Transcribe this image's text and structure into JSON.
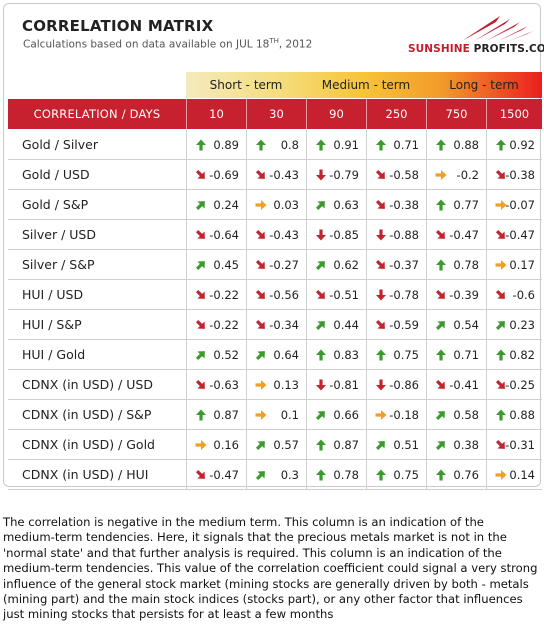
{
  "header": {
    "title": "CORRELATION MATRIX",
    "subtitle_prefix": "Calculations based on data available on  JUL 18",
    "subtitle_sup": "TH",
    "subtitle_suffix": ", 2012"
  },
  "logo": {
    "part1": "SUNSHINE",
    "part2": " PROFITS.COM",
    "colors": {
      "sun": "#c01e2d",
      "text": "#222222",
      "rays": "#c01e2d"
    }
  },
  "terms": [
    "Short - term",
    "Medium - term",
    "Long - term"
  ],
  "table": {
    "corner_label": "CORRELATION / DAYS",
    "columns": [
      "10",
      "30",
      "90",
      "250",
      "750",
      "1500"
    ],
    "rows": [
      {
        "label": "Gold / Silver",
        "cells": [
          {
            "value": "0.89",
            "dir": "up"
          },
          {
            "value": "0.8",
            "dir": "up"
          },
          {
            "value": "0.91",
            "dir": "up"
          },
          {
            "value": "0.71",
            "dir": "up"
          },
          {
            "value": "0.88",
            "dir": "up"
          },
          {
            "value": "0.92",
            "dir": "up"
          }
        ]
      },
      {
        "label": "Gold / USD",
        "cells": [
          {
            "value": "-0.69",
            "dir": "down-diag"
          },
          {
            "value": "-0.43",
            "dir": "down-diag"
          },
          {
            "value": "-0.79",
            "dir": "down"
          },
          {
            "value": "-0.58",
            "dir": "down-diag"
          },
          {
            "value": "-0.2",
            "dir": "flat"
          },
          {
            "value": "-0.38",
            "dir": "down-diag"
          }
        ]
      },
      {
        "label": "Gold / S&P",
        "cells": [
          {
            "value": "0.24",
            "dir": "up-diag"
          },
          {
            "value": "0.03",
            "dir": "flat"
          },
          {
            "value": "0.63",
            "dir": "up-diag"
          },
          {
            "value": "-0.38",
            "dir": "down-diag"
          },
          {
            "value": "0.77",
            "dir": "up"
          },
          {
            "value": "-0.07",
            "dir": "flat"
          }
        ]
      },
      {
        "label": "Silver / USD",
        "cells": [
          {
            "value": "-0.64",
            "dir": "down-diag"
          },
          {
            "value": "-0.43",
            "dir": "down-diag"
          },
          {
            "value": "-0.85",
            "dir": "down"
          },
          {
            "value": "-0.88",
            "dir": "down"
          },
          {
            "value": "-0.47",
            "dir": "down-diag"
          },
          {
            "value": "-0.47",
            "dir": "down-diag"
          }
        ]
      },
      {
        "label": "Silver / S&P",
        "cells": [
          {
            "value": "0.45",
            "dir": "up-diag"
          },
          {
            "value": "-0.27",
            "dir": "down-diag"
          },
          {
            "value": "0.62",
            "dir": "up-diag"
          },
          {
            "value": "-0.37",
            "dir": "down-diag"
          },
          {
            "value": "0.78",
            "dir": "up"
          },
          {
            "value": "0.17",
            "dir": "flat"
          }
        ]
      },
      {
        "label": "HUI / USD",
        "cells": [
          {
            "value": "-0.22",
            "dir": "down-diag"
          },
          {
            "value": "-0.56",
            "dir": "down-diag"
          },
          {
            "value": "-0.51",
            "dir": "down-diag"
          },
          {
            "value": "-0.78",
            "dir": "down"
          },
          {
            "value": "-0.39",
            "dir": "down-diag"
          },
          {
            "value": "-0.6",
            "dir": "down-diag"
          }
        ]
      },
      {
        "label": "HUI / S&P",
        "cells": [
          {
            "value": "-0.22",
            "dir": "down-diag"
          },
          {
            "value": "-0.34",
            "dir": "down-diag"
          },
          {
            "value": "0.44",
            "dir": "up-diag"
          },
          {
            "value": "-0.59",
            "dir": "down-diag"
          },
          {
            "value": "0.54",
            "dir": "up-diag"
          },
          {
            "value": "0.23",
            "dir": "up-diag"
          }
        ]
      },
      {
        "label": "HUI / Gold",
        "cells": [
          {
            "value": "0.52",
            "dir": "up-diag"
          },
          {
            "value": "0.64",
            "dir": "up-diag"
          },
          {
            "value": "0.83",
            "dir": "up"
          },
          {
            "value": "0.75",
            "dir": "up"
          },
          {
            "value": "0.71",
            "dir": "up"
          },
          {
            "value": "0.82",
            "dir": "up"
          }
        ]
      },
      {
        "label": "CDNX (in USD) / USD",
        "cells": [
          {
            "value": "-0.63",
            "dir": "down-diag"
          },
          {
            "value": "0.13",
            "dir": "flat"
          },
          {
            "value": "-0.81",
            "dir": "down"
          },
          {
            "value": "-0.86",
            "dir": "down"
          },
          {
            "value": "-0.41",
            "dir": "down-diag"
          },
          {
            "value": "-0.25",
            "dir": "down-diag"
          }
        ]
      },
      {
        "label": "CDNX (in USD) / S&P",
        "cells": [
          {
            "value": "0.87",
            "dir": "up"
          },
          {
            "value": "0.1",
            "dir": "flat"
          },
          {
            "value": "0.66",
            "dir": "up-diag"
          },
          {
            "value": "-0.18",
            "dir": "flat"
          },
          {
            "value": "0.58",
            "dir": "up-diag"
          },
          {
            "value": "0.88",
            "dir": "up"
          }
        ]
      },
      {
        "label": "CDNX (in USD) / Gold",
        "cells": [
          {
            "value": "0.16",
            "dir": "flat"
          },
          {
            "value": "0.57",
            "dir": "up-diag"
          },
          {
            "value": "0.87",
            "dir": "up"
          },
          {
            "value": "0.51",
            "dir": "up-diag"
          },
          {
            "value": "0.38",
            "dir": "up-diag"
          },
          {
            "value": "-0.31",
            "dir": "down-diag"
          }
        ]
      },
      {
        "label": "CDNX (in USD) / HUI",
        "cells": [
          {
            "value": "-0.47",
            "dir": "down-diag"
          },
          {
            "value": "0.3",
            "dir": "up-diag"
          },
          {
            "value": "0.78",
            "dir": "up"
          },
          {
            "value": "0.75",
            "dir": "up"
          },
          {
            "value": "0.76",
            "dir": "up"
          },
          {
            "value": "0.14",
            "dir": "flat"
          }
        ]
      }
    ]
  },
  "arrow_colors": {
    "up": "#3a9a2c",
    "down": "#c0242e",
    "flat": "#f0a020"
  },
  "note": "The correlation is negative in the medium term. This column is an indication of the medium-term tendencies. Here, it signals that the precious metals market is not in the 'normal state' and that further analysis is required. This column is an indication of the medium-term tendencies. This value of the correlation coefficient could signal a very strong influence of the general stock market (mining stocks are generally driven by both - metals (mining part) and the main stock indices (stocks part), or any other factor that influences just mining stocks that persists for at least a few months"
}
